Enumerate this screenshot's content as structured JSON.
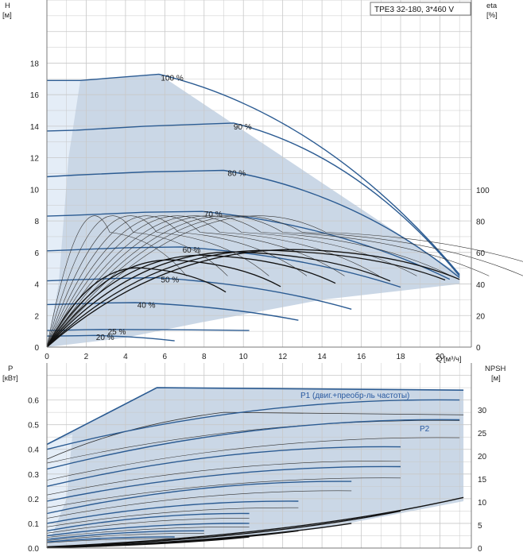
{
  "colors": {
    "region_fill": "#cad7e6",
    "region_light": "#e4edf7",
    "curve_blue": "#2b5b92",
    "curve_black": "#111111",
    "curve_thin": "#333333",
    "grid": "#c8c8c8",
    "frame": "#7a7a7a",
    "label_blue": "#2a5aa0"
  },
  "chart_data": [
    {
      "type": "line",
      "title": "TPE3 32-180, 3*460 V",
      "ylabel": "H",
      "yunit": "[м]",
      "xlabel": "Q",
      "xunit": "[м³/ч]",
      "y2label": "eta",
      "y2unit": "[%]",
      "xlim": [
        0,
        21.6
      ],
      "ylim": [
        0,
        22
      ],
      "xticks": [
        "0",
        "2",
        "4",
        "6",
        "8",
        "10",
        "12",
        "14",
        "16",
        "18",
        "20"
      ],
      "yticks": [
        "0",
        "2",
        "4",
        "6",
        "8",
        "10",
        "12",
        "14",
        "16",
        "18"
      ],
      "y2ticks": [
        "0",
        "20",
        "40",
        "60",
        "80",
        "100"
      ],
      "grid": true,
      "region": {
        "x": [
          0,
          0,
          1.7,
          5.7,
          21.0,
          21.0,
          14,
          8,
          4,
          0
        ],
        "y": [
          0,
          16.9,
          16.9,
          17.3,
          4.6,
          4.0,
          3.0,
          1.6,
          0.6,
          0
        ]
      },
      "speed_curves": [
        {
          "label": "100 %",
          "x": [
            0,
            1.7,
            5.7
          ],
          "y": [
            16.9,
            16.9,
            17.3
          ],
          "end": 21.0,
          "end_head": 4.6
        },
        {
          "label": "90 %",
          "x": [
            0,
            1.5,
            5,
            9.5
          ],
          "y": [
            13.7,
            13.75,
            14.0,
            14.2
          ],
          "end": 21.0,
          "end_head": 4.5
        },
        {
          "label": "80 %",
          "x": [
            0,
            1.4,
            5,
            9.0
          ],
          "y": [
            10.8,
            10.9,
            11.1,
            11.2
          ],
          "end": 21.0,
          "end_head": 4.4
        },
        {
          "label": "70 %",
          "x": [
            0,
            1.3,
            5,
            7.9
          ],
          "y": [
            8.3,
            8.35,
            8.55,
            8.6
          ],
          "end": 20.5,
          "end_head": 4.3
        },
        {
          "label": "60 %",
          "x": [
            0,
            1.1,
            4,
            6.8
          ],
          "y": [
            6.1,
            6.15,
            6.3,
            6.35
          ],
          "end": 18.0,
          "end_head": 3.8
        },
        {
          "label": "50 %",
          "x": [
            0,
            1.0,
            3.5,
            5.5
          ],
          "y": [
            4.2,
            4.25,
            4.35,
            4.4
          ],
          "end": 15.5,
          "end_head": 2.4
        },
        {
          "label": "40 %",
          "x": [
            0,
            0.8,
            3,
            4.5
          ],
          "y": [
            2.7,
            2.72,
            2.8,
            2.82
          ],
          "end": 12.8,
          "end_head": 1.7
        },
        {
          "label": "25 %",
          "x": [
            0,
            0.5,
            2,
            3.0
          ],
          "y": [
            1.05,
            1.06,
            1.1,
            1.12
          ],
          "end": 10.3,
          "end_head": 1.05
        },
        {
          "label": "20 %",
          "x": [
            0,
            0.4,
            1.6,
            2.4
          ],
          "y": [
            0.7,
            0.7,
            0.72,
            0.74
          ],
          "end": 6.5,
          "end_head": 0.4
        }
      ],
      "efficiency_curves": {
        "peak_x": [
          3.2,
          4.4,
          5.6,
          6.7,
          7.8,
          8.8,
          9.9,
          10.9,
          12.0,
          13.0,
          14.2
        ],
        "peak_eta": [
          73,
          73,
          73,
          73,
          73,
          73,
          73,
          73,
          73,
          73,
          73
        ],
        "bold_peak_x": [
          5.1,
          6.9,
          8.7,
          10.5,
          12.3,
          13.8
        ],
        "bold_peak_eta": [
          50,
          55,
          58,
          60,
          61,
          61.5
        ]
      }
    },
    {
      "type": "line",
      "ylabel": "P",
      "yunit": "[кВт]",
      "y2label": "NPSH",
      "y2unit": "[м]",
      "xlim": [
        0,
        21.6
      ],
      "ylim": [
        0,
        0.75
      ],
      "yticks": [
        "0.0",
        "0.1",
        "0.2",
        "0.3",
        "0.4",
        "0.5",
        "0.6"
      ],
      "y2ticks": [
        "0",
        "5",
        "10",
        "15",
        "20",
        "25",
        "30"
      ],
      "grid": true,
      "series": [
        {
          "name": "P1 (двиг.+преобр-ль частоты)",
          "x": [
            0,
            5.6,
            21.2
          ],
          "y": [
            0.42,
            0.65,
            0.64
          ]
        },
        {
          "name": "P2",
          "x": [
            0,
            9.0,
            21.2
          ],
          "y": [
            0.36,
            0.55,
            0.54
          ]
        }
      ],
      "region": {
        "x": [
          0,
          0,
          5.6,
          21.2,
          21.2,
          14,
          8,
          4,
          0
        ],
        "y": [
          0,
          0.42,
          0.65,
          0.64,
          0.19,
          0.08,
          0.03,
          0.01,
          0
        ]
      }
    }
  ]
}
